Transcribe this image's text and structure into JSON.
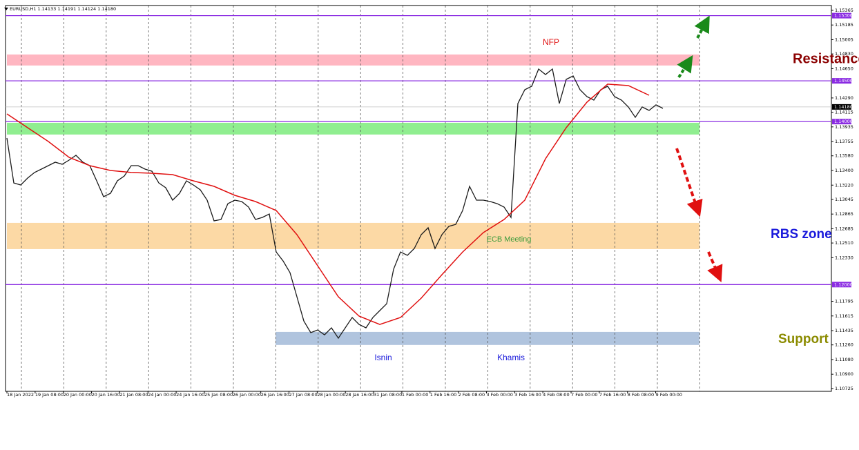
{
  "chart_data": {
    "type": "line",
    "title": "EURUSD,H1  1.14133 1.14191 1.14124 1.14180",
    "ylim": [
      1.1069,
      1.15424
    ],
    "yticks": [
      1.15365,
      1.15185,
      {
        "value": 1.15005,
        "label": "1.15005"
      },
      {
        "value": 1.1483,
        "label": "1.14830"
      },
      {
        "value": 1.1465,
        "label": "1.14650"
      },
      {
        "value": 1.1429,
        "label": "1.14290"
      },
      1.14115,
      1.13935,
      1.13755,
      {
        "value": 1.1358,
        "label": "1.13580"
      },
      {
        "value": 1.134,
        "label": "1.13400"
      },
      {
        "value": 1.1322,
        "label": "1.13220"
      },
      1.13045,
      1.12865,
      1.12685,
      {
        "value": 1.1251,
        "label": "1.12510"
      },
      {
        "value": 1.1233,
        "label": "1.12330"
      },
      1.11795,
      1.11615,
      1.11435,
      {
        "value": 1.1126,
        "label": "1.11260"
      },
      {
        "value": 1.1108,
        "label": "1.11080"
      },
      {
        "value": 1.109,
        "label": "1.10900"
      },
      1.10725
    ],
    "x_labels": [
      "18 Jan 2022",
      "19 Jan 08:00",
      "20 Jan 00:00",
      "20 Jan 16:00",
      "21 Jan 08:00",
      "24 Jan 00:00",
      "24 Jan 16:00",
      "25 Jan 08:00",
      "26 Jan 00:00",
      "26 Jan 16:00",
      "27 Jan 08:00",
      "28 Jan 00:00",
      "28 Jan 16:00",
      "31 Jan 08:00",
      "1 Feb 00:00",
      "1 Feb 16:00",
      "2 Feb 08:00",
      "3 Feb 00:00",
      "3 Feb 16:00",
      "4 Feb 08:00",
      "7 Feb 00:00",
      "7 Feb 16:00",
      "8 Feb 08:00",
      "9 Feb 00:00"
    ],
    "series": [
      {
        "color": "#1a1a1a",
        "values": [
          1.13798,
          1.13247,
          1.13222,
          1.13307,
          1.13375,
          1.13417,
          1.13459,
          1.13502,
          1.13476,
          1.13527,
          1.13586,
          1.13502,
          1.13459,
          1.13273,
          1.13078,
          1.1312,
          1.13273,
          1.13332,
          1.13459,
          1.13459,
          1.13417,
          1.13391,
          1.13247,
          1.13188,
          1.13036,
          1.1312,
          1.13273,
          1.13222,
          1.13163,
          1.13036,
          1.12782,
          1.12799,
          1.12993,
          1.13036,
          1.13019,
          1.12951,
          1.12799,
          1.12824,
          1.12866,
          1.124,
          1.1229,
          1.12146,
          1.1185,
          1.11553,
          1.1141,
          1.11443,
          1.11384,
          1.11469,
          1.11342,
          1.11469,
          1.11596,
          1.11511,
          1.11469,
          1.11596,
          1.11681,
          1.11765,
          1.12189,
          1.124,
          1.12358,
          1.12443,
          1.12612,
          1.12697,
          1.12443,
          1.12612,
          1.12714,
          1.12739,
          1.12909,
          1.13205,
          1.13036,
          1.13036,
          1.13019,
          1.12993,
          1.12951,
          1.12824,
          1.14222,
          1.14391,
          1.14433,
          1.14645,
          1.14577,
          1.14645,
          1.14222,
          1.14518,
          1.1456,
          1.14391,
          1.14306,
          1.14264,
          1.14391,
          1.14433,
          1.14306,
          1.14264,
          1.14179,
          1.14052,
          1.14179,
          1.14137,
          1.14205,
          1.14162
        ]
      },
      {
        "color": "#e01010",
        "values": [
          1.14094,
          1.13925,
          1.13756,
          1.13561,
          1.13459,
          1.134,
          1.13375,
          1.13366,
          1.13349,
          1.13273,
          1.13205,
          1.13095,
          1.13019,
          1.12909,
          1.12612,
          1.12231,
          1.1185,
          1.11613,
          1.11511,
          1.11596,
          1.11833,
          1.12121,
          1.124,
          1.12638,
          1.12799,
          1.13036,
          1.13544,
          1.13925,
          1.14238,
          1.14459,
          1.14442,
          1.14323
        ]
      }
    ],
    "levels": [
      {
        "value": 1.153,
        "label": "1.15300"
      },
      {
        "value": 1.145,
        "label": "1.14500"
      },
      {
        "value": 1.14,
        "label": "1.14000"
      },
      {
        "value": 1.12,
        "label": "1.12000"
      }
    ],
    "level_color": "#8a2be2",
    "current_price": {
      "value": 1.1418,
      "label": "1.14180"
    },
    "zones": [
      {
        "from": 1.14823,
        "to": 1.14688,
        "color": "#ffb6c1"
      },
      {
        "from": 1.13985,
        "to": 1.13841,
        "color": "#90ee90"
      },
      {
        "from": 1.12757,
        "to": 1.12435,
        "color": "#fcd9a5"
      },
      {
        "from": 1.11419,
        "to": 1.11259,
        "color": "#b0c4de"
      }
    ],
    "annotations": {
      "resistance": "Resistance",
      "rbs": "RBS zone",
      "support": "Support",
      "nfp": "NFP",
      "ecb": "ECB Meeting",
      "isnin": "Isnin",
      "khamis": "Khamis"
    }
  }
}
